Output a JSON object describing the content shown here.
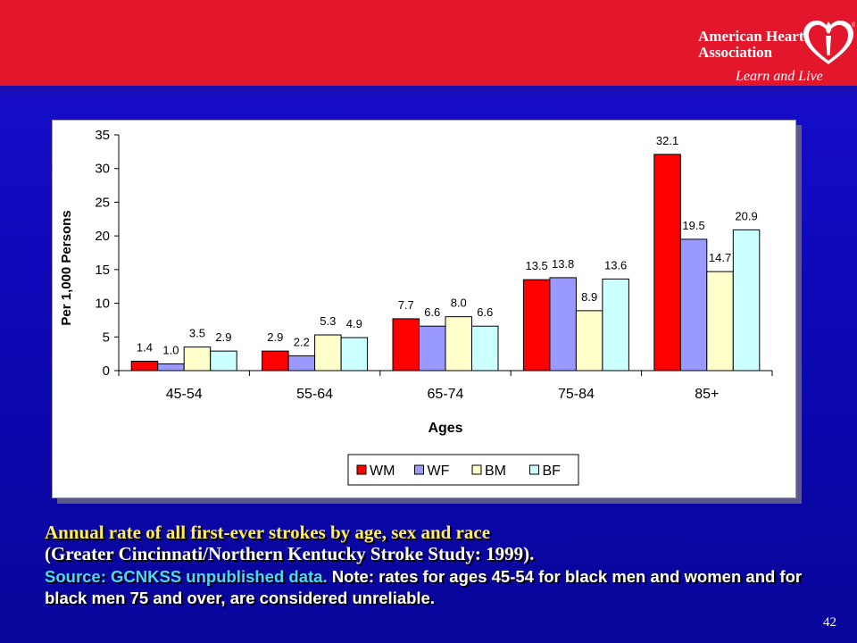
{
  "branding": {
    "org_name_line1": "American Heart",
    "org_name_line2": "Association",
    "tagline": "Learn and Live",
    "logo_icon": "heart-torch-icon",
    "top_band_color": "#e3162c"
  },
  "chart_data": {
    "type": "bar",
    "categories": [
      "45-54",
      "55-64",
      "65-74",
      "75-84",
      "85+"
    ],
    "series": [
      {
        "name": "WM",
        "values": [
          1.4,
          2.9,
          7.7,
          13.5,
          32.1
        ],
        "color": "#ff0000"
      },
      {
        "name": "WF",
        "values": [
          1.0,
          2.2,
          6.6,
          13.8,
          19.5
        ],
        "color": "#9999ff"
      },
      {
        "name": "BM",
        "values": [
          3.5,
          5.3,
          8.0,
          8.9,
          14.7
        ],
        "color": "#ffffcc"
      },
      {
        "name": "BF",
        "values": [
          2.9,
          4.9,
          6.6,
          13.6,
          20.9
        ],
        "color": "#ccffff"
      }
    ],
    "data_labels": [
      [
        "1.4",
        "1.0",
        "3.5",
        "2.9"
      ],
      [
        "2.9",
        "2.2",
        "5.3",
        "4.9"
      ],
      [
        "7.7",
        "6.6",
        "8.0",
        "6.6"
      ],
      [
        "13.5",
        "13.8",
        "8.9",
        "13.6"
      ],
      [
        "32.1",
        "19.5",
        "14.7",
        "20.9"
      ]
    ],
    "xlabel": "Ages",
    "ylabel": "Per 1,000 Persons",
    "ylim": [
      0,
      35
    ],
    "yticks": [
      0,
      5,
      10,
      15,
      20,
      25,
      30,
      35
    ],
    "grid": false,
    "legend_position": "bottom-center"
  },
  "caption": {
    "title_line1": "Annual rate of all first-ever strokes by age, sex and race",
    "title_line2": "(Greater Cincinnati/Northern Kentucky Stroke Study: 1999).",
    "source_label": "Source: GCNKSS unpublished data.",
    "note": "Note: rates for ages 45-54 for black men and women and for black men 75 and over, are considered unreliable."
  },
  "slide_number": "42"
}
